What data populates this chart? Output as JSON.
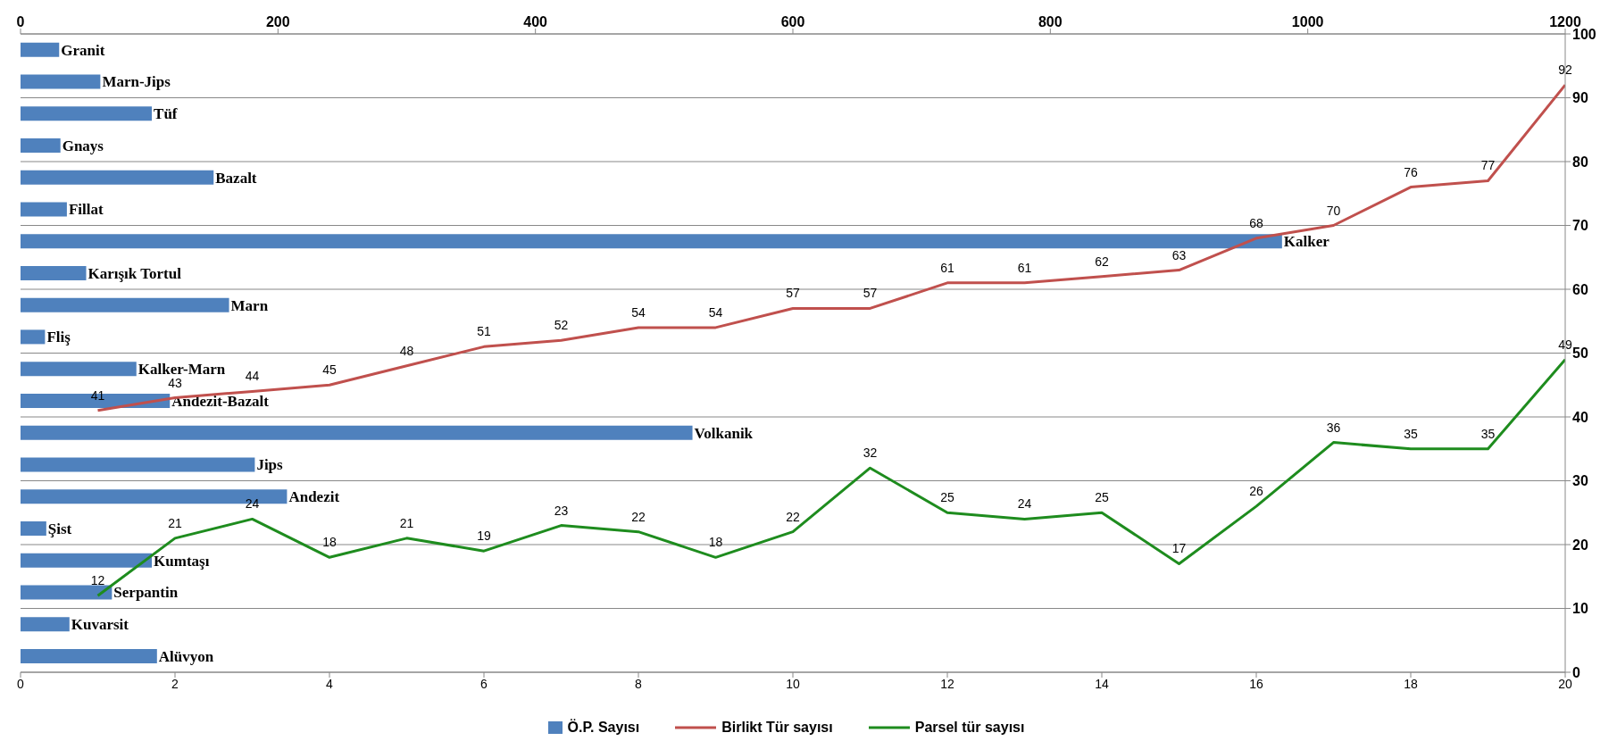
{
  "chart_data": [
    {
      "type": "bar",
      "orientation": "horizontal",
      "categories": [
        "Granit",
        "Marn-Jips",
        "Tüf",
        "Gnays",
        "Bazalt",
        "Fillat",
        "Kalker",
        "Karışık Tortul",
        "Marn",
        "Fliş",
        "Kalker-Marn",
        "Andezit-Bazalt",
        "Volkanik",
        "Jips",
        "Andezit",
        "Şist",
        "Kumtaşı",
        "Serpantin",
        "Kuvarsit",
        "Alüvyon"
      ],
      "series": [
        {
          "name": "Ö.P. Sayısı",
          "color": "#4f81bd",
          "values": [
            30,
            62,
            102,
            31,
            150,
            36,
            980,
            51,
            162,
            19,
            90,
            116,
            522,
            182,
            207,
            20,
            102,
            71,
            38,
            106
          ]
        }
      ],
      "xlim": [
        0,
        1200
      ],
      "xticks": [
        0,
        200,
        400,
        600,
        800,
        1000,
        1200
      ],
      "legend": "bottom"
    },
    {
      "type": "line",
      "x": [
        1,
        2,
        3,
        4,
        5,
        6,
        7,
        8,
        9,
        10,
        11,
        12,
        13,
        14,
        15,
        16,
        17,
        18,
        19,
        20
      ],
      "series": [
        {
          "name": "Birlikt Tür sayısı",
          "color": "#c0504d",
          "values": [
            41,
            43,
            44,
            45,
            48,
            51,
            52,
            54,
            54,
            57,
            57,
            61,
            61,
            62,
            63,
            68,
            70,
            76,
            77,
            92
          ]
        },
        {
          "name": "Parsel tür sayısı",
          "color": "#1e8c1e",
          "values": [
            12,
            21,
            24,
            18,
            21,
            19,
            23,
            22,
            18,
            22,
            32,
            25,
            24,
            25,
            17,
            26,
            36,
            35,
            35,
            49
          ]
        }
      ],
      "xlim": [
        0,
        20
      ],
      "xticks": [
        0,
        2,
        4,
        6,
        8,
        10,
        12,
        14,
        16,
        18,
        20
      ],
      "ylim": [
        0,
        100
      ],
      "yticks": [
        0,
        10,
        20,
        30,
        40,
        50,
        60,
        70,
        80,
        90,
        100
      ],
      "grid": "y",
      "legend": "bottom",
      "data_labels": true,
      "marker": "none",
      "line_style": "solid"
    }
  ]
}
